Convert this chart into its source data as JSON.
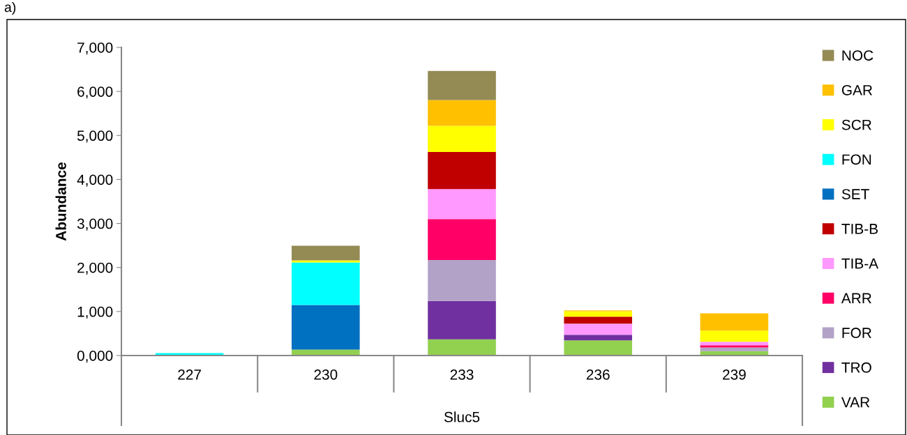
{
  "chart_data": {
    "type": "bar",
    "stacked": true,
    "ylabel": "Abundance",
    "xlabel": "Sluc5",
    "categories": [
      "227",
      "230",
      "233",
      "236",
      "239"
    ],
    "series": [
      {
        "name": "VAR",
        "color": "#92d050",
        "values": [
          0,
          135,
          370,
          345,
          98
        ]
      },
      {
        "name": "TRO",
        "color": "#7030a0",
        "values": [
          0,
          0,
          870,
          127,
          0
        ]
      },
      {
        "name": "FOR",
        "color": "#b3a2c7",
        "values": [
          0,
          0,
          930,
          0,
          84
        ]
      },
      {
        "name": "ARR",
        "color": "#ff0066",
        "values": [
          0,
          0,
          930,
          0,
          53
        ]
      },
      {
        "name": "TIB-A",
        "color": "#ff99ff",
        "values": [
          0,
          0,
          680,
          254,
          79
        ]
      },
      {
        "name": "TIB-B",
        "color": "#c00000",
        "values": [
          0,
          0,
          845,
          158,
          0
        ]
      },
      {
        "name": "SET",
        "color": "#0070c0",
        "values": [
          0,
          1015,
          0,
          0,
          0
        ]
      },
      {
        "name": "FON",
        "color": "#00ffff",
        "values": [
          55,
          965,
          0,
          0,
          0
        ]
      },
      {
        "name": "SCR",
        "color": "#ffff00",
        "values": [
          0,
          45,
          595,
          122,
          253
        ]
      },
      {
        "name": "GAR",
        "color": "#ffc000",
        "values": [
          0,
          0,
          585,
          21,
          392
        ]
      },
      {
        "name": "NOC",
        "color": "#948a54",
        "values": [
          0,
          335,
          660,
          0,
          0
        ]
      }
    ],
    "ylim": [
      0,
      7000
    ],
    "yticks": [
      {
        "value": 0,
        "label": "0,000"
      },
      {
        "value": 1000,
        "label": "1,000"
      },
      {
        "value": 2000,
        "label": "2,000"
      },
      {
        "value": 3000,
        "label": "3,000"
      },
      {
        "value": 4000,
        "label": "4,000"
      },
      {
        "value": 5000,
        "label": "5,000"
      },
      {
        "value": 6000,
        "label": "6,000"
      },
      {
        "value": 7000,
        "label": "7,000"
      }
    ],
    "grid": false,
    "legend": "right",
    "annotations": [
      "a)"
    ]
  }
}
